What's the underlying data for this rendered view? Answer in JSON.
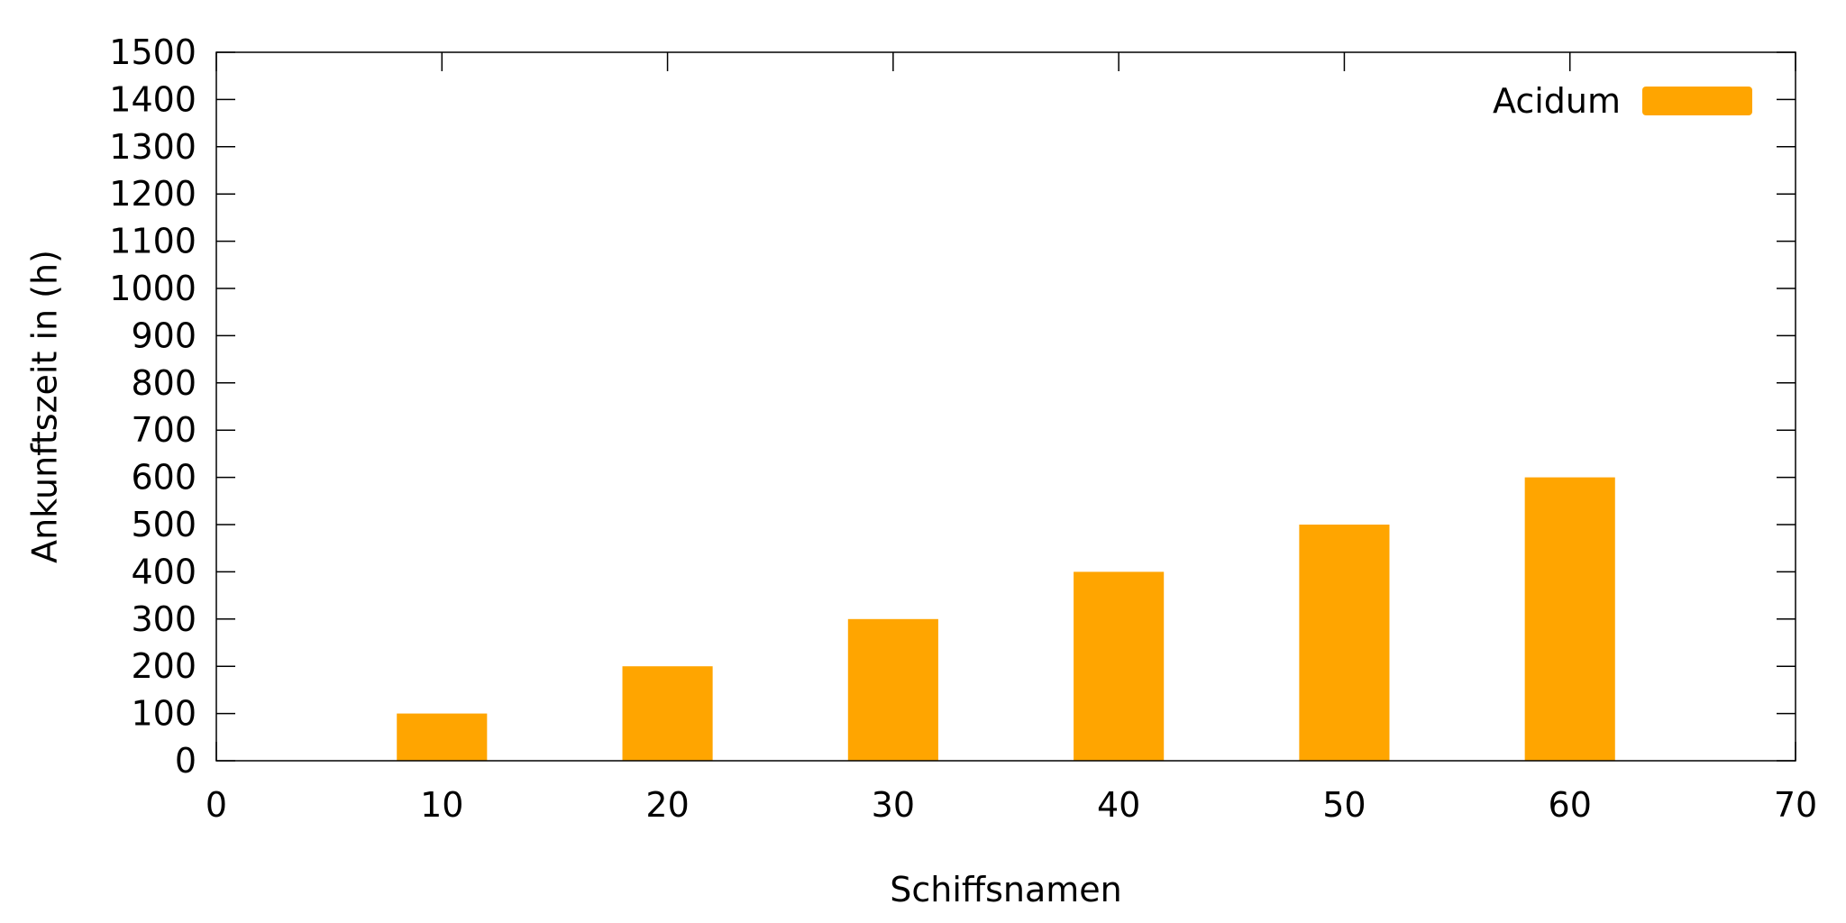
{
  "chart_data": {
    "type": "bar",
    "title": "",
    "xlabel": "Schiffsnamen",
    "ylabel": "Ankunftszeit in (h)",
    "xlim": [
      0,
      70
    ],
    "ylim": [
      0,
      1500
    ],
    "x_ticks": [
      0,
      10,
      20,
      30,
      40,
      50,
      60,
      70
    ],
    "y_ticks": [
      0,
      100,
      200,
      300,
      400,
      500,
      600,
      700,
      800,
      900,
      1000,
      1100,
      1200,
      1300,
      1400,
      1500
    ],
    "bar_width": 4,
    "grid": false,
    "legend_position": "top-right",
    "series": [
      {
        "name": "Acidum",
        "color": "#FFA500",
        "x": [
          10,
          20,
          30,
          40,
          50,
          60
        ],
        "values": [
          100,
          200,
          300,
          400,
          500,
          600
        ]
      }
    ]
  }
}
